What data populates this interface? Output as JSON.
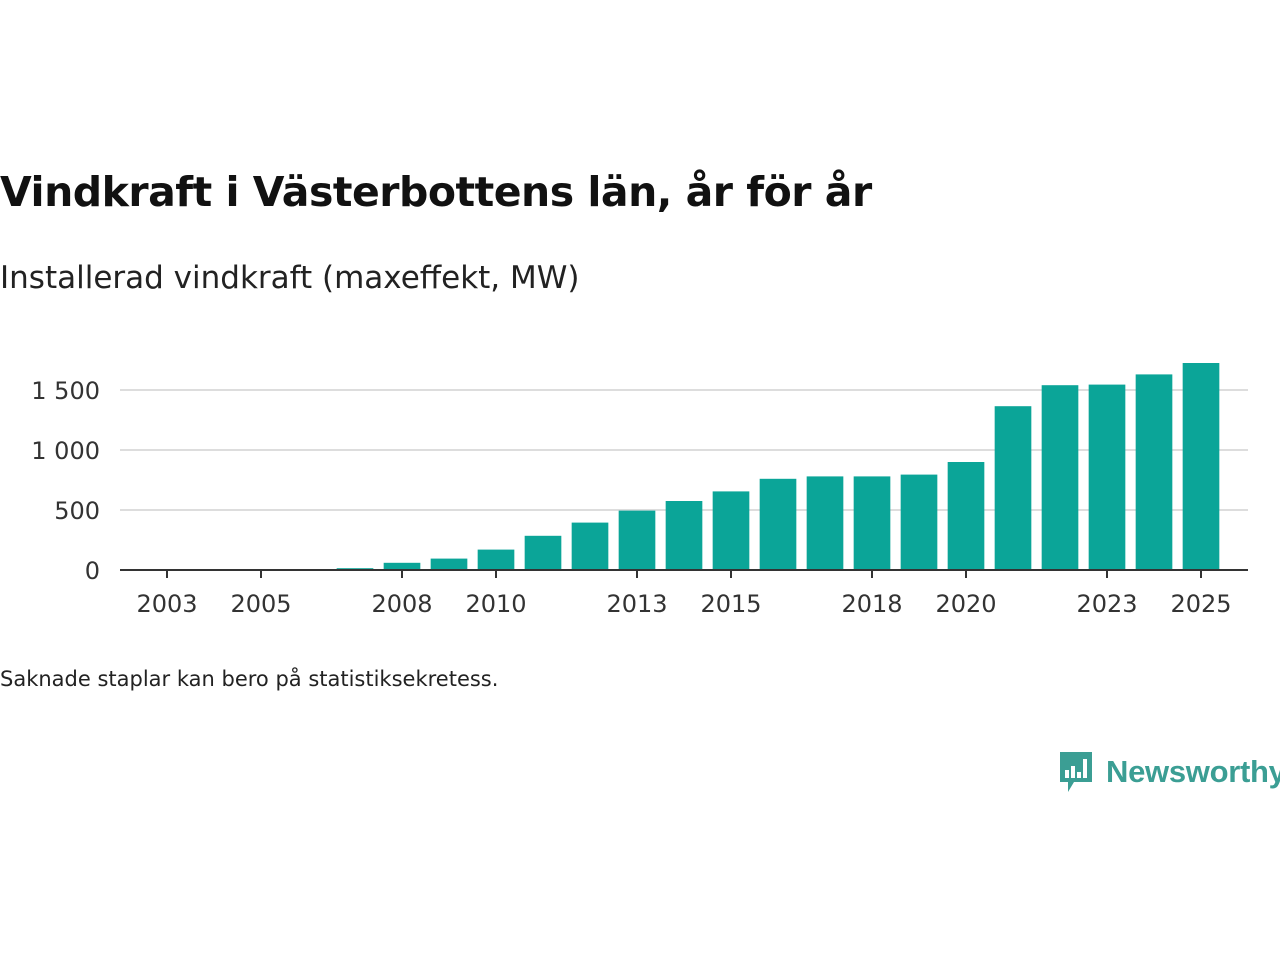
{
  "title": "Vindkraft i Västerbottens län, år för år",
  "subtitle": "Installerad vindkraft (maxeffekt, MW)",
  "footnote": "Saknade staplar kan bero på statistiksekretess.",
  "brand": {
    "name": "Newsworthy",
    "icon": "newsworthy-logo-icon"
  },
  "colors": {
    "bar": "#0ba598",
    "grid": "#dddddd",
    "axis": "#333333",
    "brand": "#3b9e94"
  },
  "chart_data": {
    "type": "bar",
    "title": "Vindkraft i Västerbottens län, år för år",
    "subtitle": "Installerad vindkraft (maxeffekt, MW)",
    "xlabel": "",
    "ylabel": "",
    "ylim": [
      0,
      1750
    ],
    "yticks": [
      0,
      500,
      1000,
      1500
    ],
    "ytick_labels": [
      "0",
      "500",
      "1 000",
      "1 500"
    ],
    "x_range": [
      2002,
      2026
    ],
    "xtick_labels": [
      "2003",
      "2005",
      "2008",
      "2010",
      "2013",
      "2015",
      "2018",
      "2020",
      "2023",
      "2025"
    ],
    "categories": [
      "2003",
      "2004",
      "2005",
      "2006",
      "2007",
      "2008",
      "2009",
      "2010",
      "2011",
      "2012",
      "2013",
      "2014",
      "2015",
      "2016",
      "2017",
      "2018",
      "2019",
      "2020",
      "2021",
      "2022",
      "2023",
      "2024",
      "2025"
    ],
    "values": [
      0,
      0,
      0,
      0,
      15,
      60,
      95,
      170,
      285,
      395,
      495,
      575,
      655,
      760,
      780,
      780,
      795,
      900,
      1365,
      1540,
      1545,
      1630,
      1725
    ],
    "grid": true,
    "legend": "none"
  }
}
